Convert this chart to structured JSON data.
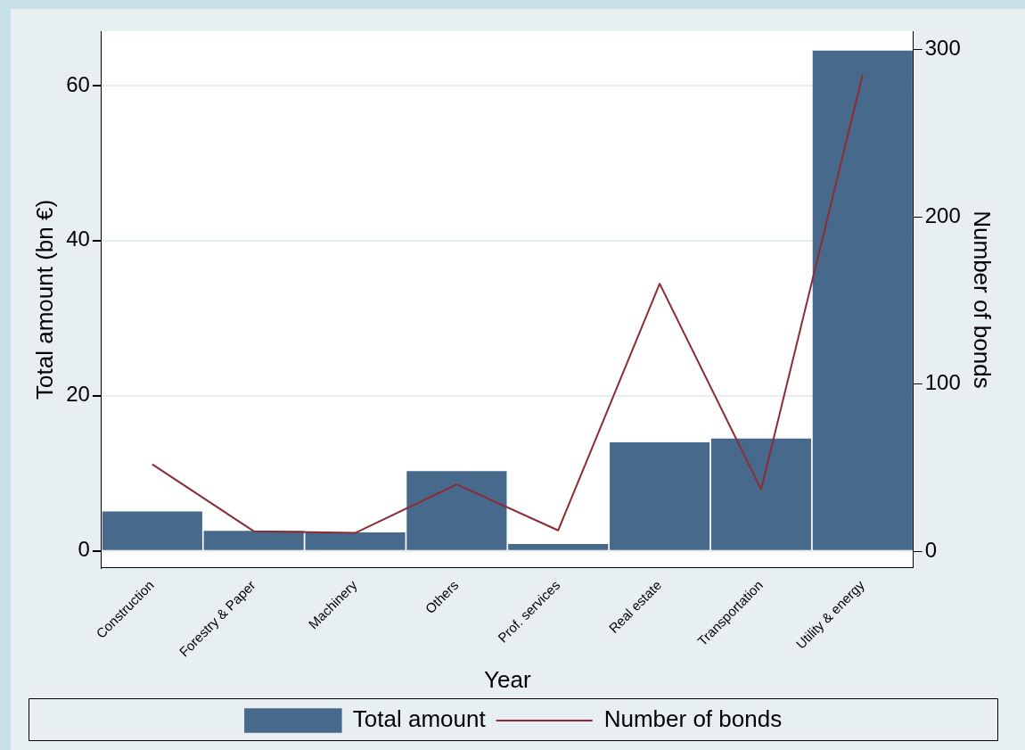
{
  "chart_data": {
    "type": "bar",
    "xlabel": "Year",
    "ylabel": "Total amount (bn €)",
    "y2label": "Number of bonds",
    "categories": [
      "Construction",
      "Forestry & Paper",
      "Machinery",
      "Others",
      "Prof. services",
      "Real estate",
      "Transportation",
      "Utility & energy"
    ],
    "series": [
      {
        "name": "Total amount",
        "color": "#476a8c",
        "values": [
          5.1,
          2.6,
          2.4,
          10.3,
          0.9,
          14.0,
          14.5,
          64.5
        ]
      },
      {
        "name": "Number of bonds",
        "type": "line",
        "axis": "y2",
        "color": "#8b2c35",
        "values": [
          52,
          12,
          11,
          40,
          12.5,
          160,
          37,
          285
        ]
      }
    ],
    "ylim": [
      -2.2,
      67
    ],
    "yticks": [
      0,
      20,
      40,
      60
    ],
    "y2lim": [
      -10,
      311
    ],
    "y2ticks": [
      0,
      100,
      200,
      300
    ],
    "grid": "y",
    "legend": "bottom",
    "marker": "none",
    "line_style": "solid"
  }
}
